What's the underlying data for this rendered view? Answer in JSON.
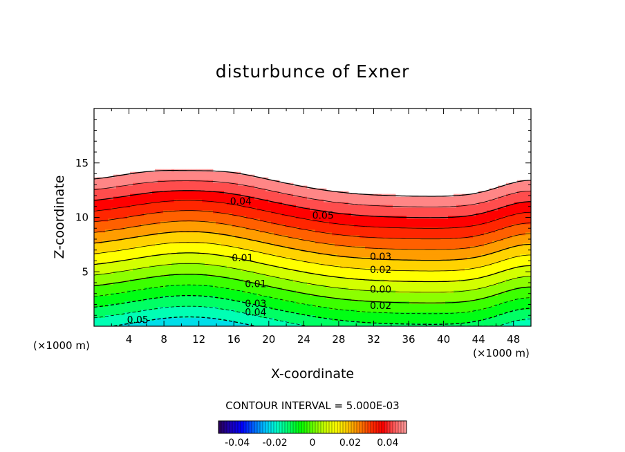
{
  "chart_data": {
    "type": "contour",
    "title": "disturbunce of Exner",
    "xlabel": "X-coordinate",
    "ylabel": "Z-coordinate",
    "x_unit_left": "(×1000 m)",
    "x_unit_right": "(×1000 m)",
    "xlim": [
      0,
      50
    ],
    "ylim": [
      0,
      20
    ],
    "xticks": [
      "4",
      "8",
      "12",
      "16",
      "20",
      "24",
      "28",
      "32",
      "36",
      "40",
      "44",
      "48"
    ],
    "yticks": [
      "5",
      "10",
      "15"
    ],
    "contour_interval_text": "CONTOUR INTERVAL = 5.000E-03",
    "contour_interval": 0.005,
    "levels": [
      -0.05,
      -0.045,
      -0.04,
      -0.035,
      -0.03,
      -0.025,
      -0.02,
      -0.015,
      -0.01,
      -0.005,
      0.0,
      0.005,
      0.01,
      0.015,
      0.02,
      0.025,
      0.03,
      0.035,
      0.04,
      0.045,
      0.05
    ],
    "contour_labels": [
      {
        "text": "0.04",
        "x": 16.8,
        "y": 11.5
      },
      {
        "text": "0.05",
        "x": 26.2,
        "y": 10.2
      },
      {
        "text": "0.03",
        "x": 32.8,
        "y": 6.4
      },
      {
        "text": "0.02",
        "x": 32.8,
        "y": 5.2
      },
      {
        "text": "0.00",
        "x": 32.8,
        "y": 3.4
      },
      {
        "text": "0.02",
        "x": 32.8,
        "y": 1.9
      },
      {
        "text": "0.01",
        "x": 17.0,
        "y": 6.3
      },
      {
        "text": "0.01",
        "x": 18.5,
        "y": 3.9
      },
      {
        "text": "0.03",
        "x": 18.5,
        "y": 2.1
      },
      {
        "text": "0.04",
        "x": 18.5,
        "y": 1.3
      },
      {
        "text": "0.05",
        "x": 5.0,
        "y": 0.6
      }
    ],
    "colorbar": {
      "min": -0.05,
      "max": 0.05,
      "ticks": [
        "-0.04",
        "-0.02",
        "0",
        "0.02",
        "0.04"
      ],
      "tick_values": [
        -0.04,
        -0.02,
        0,
        0.02,
        0.04
      ]
    },
    "colors": [
      "#2a0050",
      "#1c00b8",
      "#0000ff",
      "#0064ff",
      "#00c8ff",
      "#00ffc8",
      "#00ff64",
      "#00ff00",
      "#64ff00",
      "#c8ff00",
      "#ffff00",
      "#ffc800",
      "#ff8000",
      "#ff3000",
      "#ff0000",
      "#ff6060",
      "#ffa0a0"
    ]
  }
}
